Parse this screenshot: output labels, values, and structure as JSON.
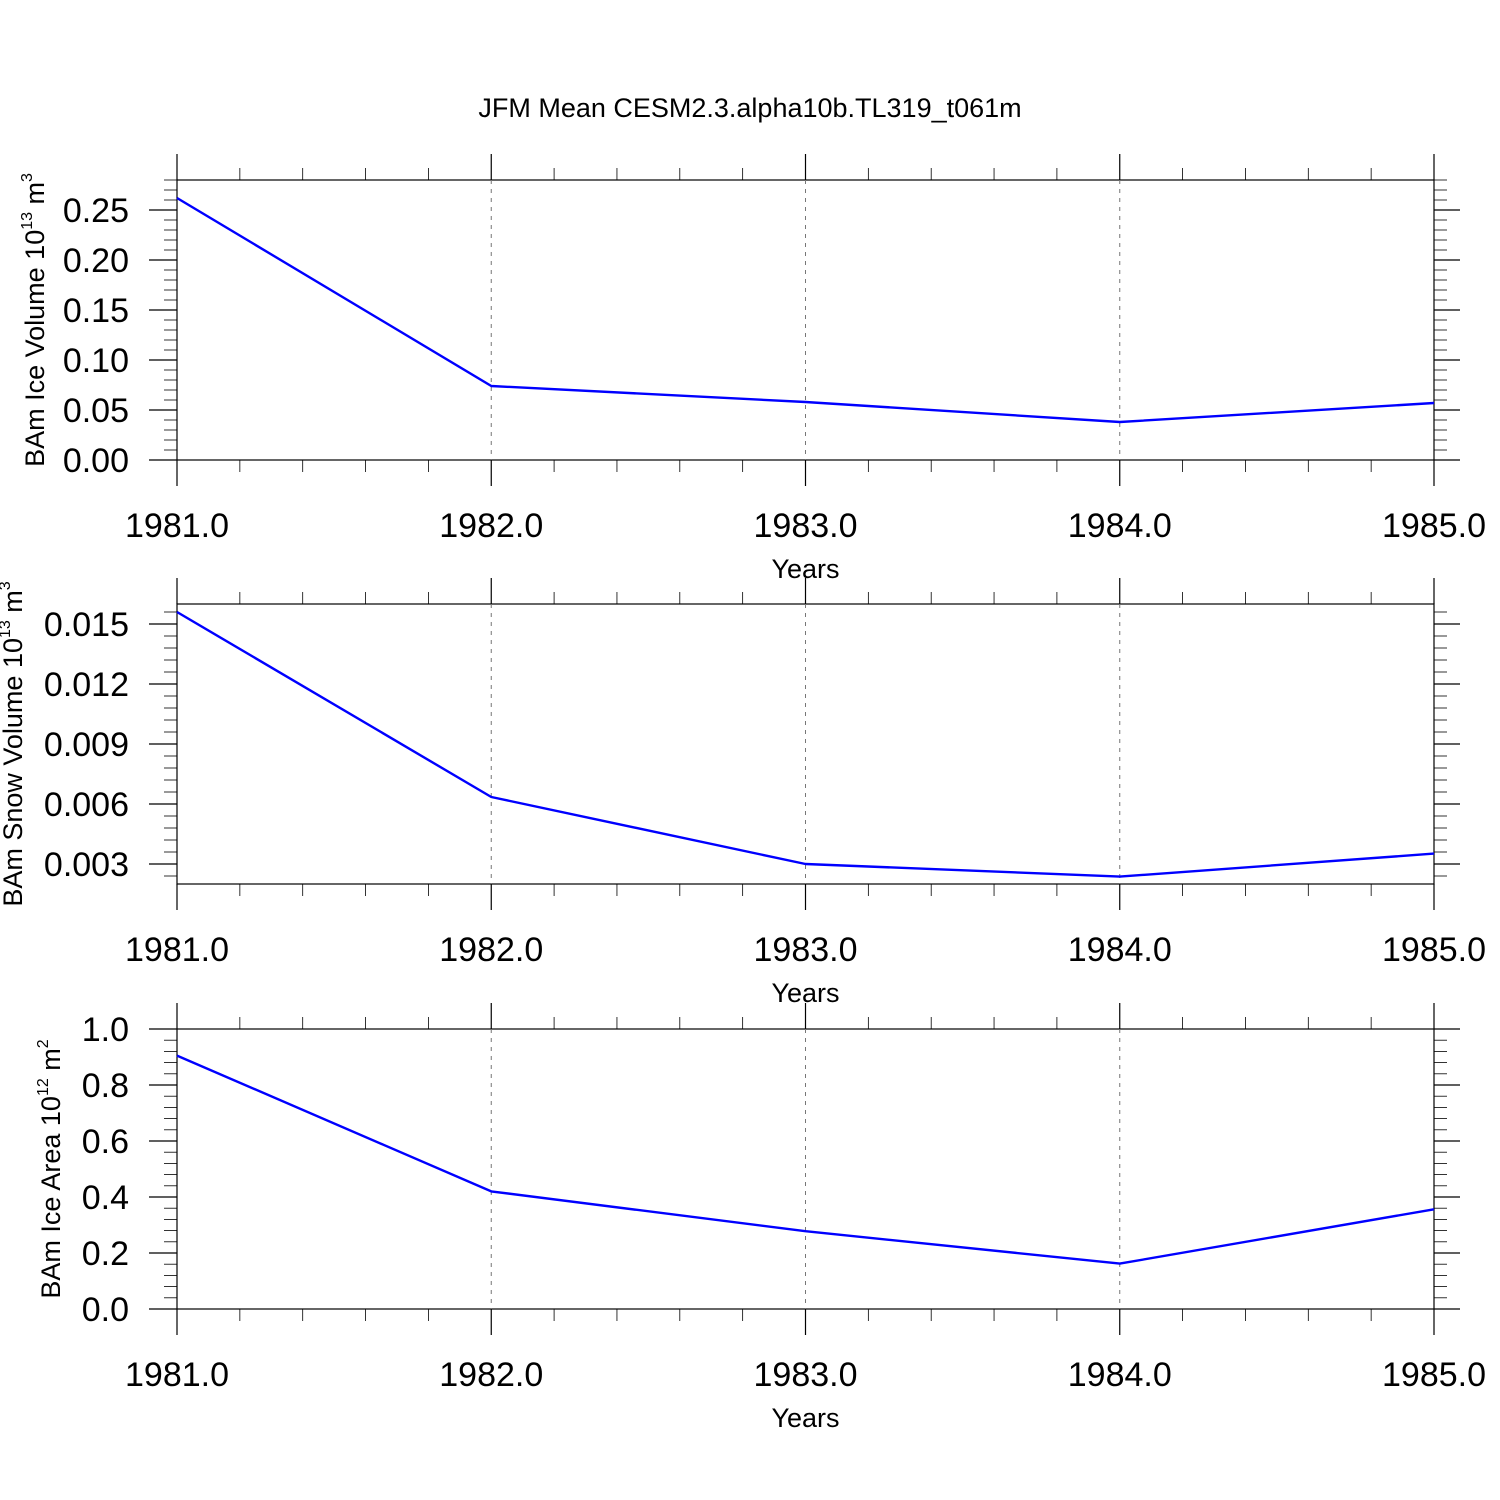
{
  "title": "JFM Mean CESM2.3.alpha10b.TL319_t061m",
  "colors": {
    "series": "#0000ff",
    "grid": "#777777"
  },
  "chart_data": [
    {
      "type": "line",
      "xlabel": "Years",
      "ylabel": {
        "text": "BAm Ice Volume 10",
        "exp": "13",
        "unit": " m",
        "unit_exp": "3"
      },
      "x": [
        1981,
        1982,
        1983,
        1984,
        1985
      ],
      "xlim": [
        1981,
        1985
      ],
      "xticks": [
        "1981.0",
        "1982.0",
        "1983.0",
        "1984.0",
        "1985.0"
      ],
      "ylim": [
        0.0,
        0.28
      ],
      "yticks": [
        0.0,
        0.05,
        0.1,
        0.15,
        0.2,
        0.25
      ],
      "ytick_labels": [
        "0.00",
        "0.05",
        "0.10",
        "0.15",
        "0.20",
        "0.25"
      ],
      "values": [
        0.262,
        0.074,
        0.058,
        0.038,
        0.057
      ],
      "grid": "x-dashed"
    },
    {
      "type": "line",
      "xlabel": "Years",
      "ylabel": {
        "text": "BAm Snow Volume 10",
        "exp": "13",
        "unit": " m",
        "unit_exp": "3"
      },
      "x": [
        1981,
        1982,
        1983,
        1984,
        1985
      ],
      "xlim": [
        1981,
        1985
      ],
      "xticks": [
        "1981.0",
        "1982.0",
        "1983.0",
        "1984.0",
        "1985.0"
      ],
      "ylim": [
        0.002,
        0.016
      ],
      "yticks": [
        0.003,
        0.006,
        0.009,
        0.012,
        0.015
      ],
      "ytick_labels": [
        "0.003",
        "0.006",
        "0.009",
        "0.012",
        "0.015"
      ],
      "values": [
        0.0156,
        0.00635,
        0.003,
        0.00237,
        0.00352
      ],
      "grid": "x-dashed"
    },
    {
      "type": "line",
      "xlabel": "Years",
      "ylabel": {
        "text": "BAm Ice Area 10",
        "exp": "12",
        "unit": " m",
        "unit_exp": "2"
      },
      "x": [
        1981,
        1982,
        1983,
        1984,
        1985
      ],
      "xlim": [
        1981,
        1985
      ],
      "xticks": [
        "1981.0",
        "1982.0",
        "1983.0",
        "1984.0",
        "1985.0"
      ],
      "ylim": [
        0.0,
        1.0
      ],
      "yticks": [
        0.0,
        0.2,
        0.4,
        0.6,
        0.8,
        1.0
      ],
      "ytick_labels": [
        "0.0",
        "0.2",
        "0.4",
        "0.6",
        "0.8",
        "1.0"
      ],
      "values": [
        0.905,
        0.42,
        0.278,
        0.162,
        0.356
      ],
      "grid": "x-dashed"
    }
  ]
}
